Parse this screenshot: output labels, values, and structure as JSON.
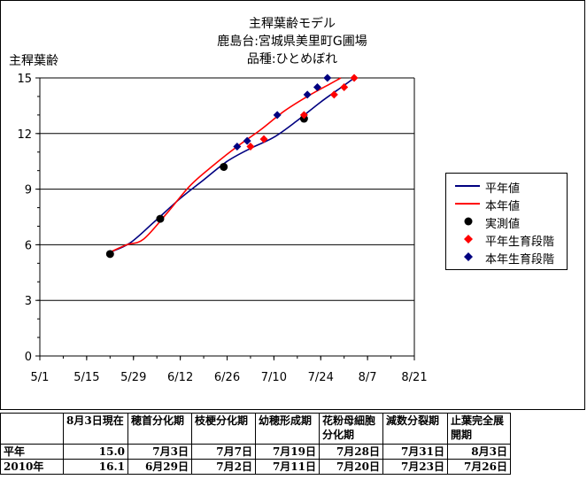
{
  "titles": [
    "主稈葉齢モデル",
    "鹿島台:宮城県美里町G圃場",
    "品種:ひとめぼれ"
  ],
  "chart_data": {
    "type": "line",
    "title": "主稈葉齢モデル",
    "ylabel": "主稈葉齢",
    "xlabel": "",
    "x_ticks": [
      "5/1",
      "5/15",
      "5/29",
      "6/12",
      "6/26",
      "7/10",
      "7/24",
      "8/7",
      "8/21"
    ],
    "y_ticks": [
      "0",
      "3",
      "6",
      "9",
      "12",
      "15"
    ],
    "ylim": [
      0,
      15
    ],
    "xlim": [
      "5/1",
      "8/21"
    ],
    "grid": "horizontal",
    "legend_position": "right",
    "series": [
      {
        "name": "平年値",
        "kind": "line",
        "color": "#000080",
        "points": [
          [
            "5/22",
            5.6
          ],
          [
            "5/28",
            6.1
          ],
          [
            "6/4",
            7.2
          ],
          [
            "6/12",
            8.5
          ],
          [
            "6/19",
            9.5
          ],
          [
            "6/26",
            10.5
          ],
          [
            "7/3",
            11.2
          ],
          [
            "7/10",
            11.8
          ],
          [
            "7/17",
            12.7
          ],
          [
            "7/24",
            13.7
          ],
          [
            "7/31",
            14.6
          ],
          [
            "8/3",
            15.0
          ]
        ]
      },
      {
        "name": "本年値",
        "kind": "line",
        "color": "#ff0000",
        "points": [
          [
            "5/22",
            5.6
          ],
          [
            "5/27",
            6.0
          ],
          [
            "6/1",
            6.3
          ],
          [
            "6/8",
            7.7
          ],
          [
            "6/15",
            9.2
          ],
          [
            "6/22",
            10.3
          ],
          [
            "6/29",
            11.3
          ],
          [
            "7/6",
            12.2
          ],
          [
            "7/13",
            13.2
          ],
          [
            "7/20",
            14.0
          ],
          [
            "7/27",
            14.7
          ],
          [
            "7/30",
            15.0
          ]
        ]
      },
      {
        "name": "実測値",
        "kind": "marker",
        "marker": "circle",
        "color": "#000000",
        "points": [
          [
            "5/22",
            5.5
          ],
          [
            "6/6",
            7.4
          ],
          [
            "6/25",
            10.2
          ],
          [
            "7/19",
            12.8
          ]
        ]
      },
      {
        "name": "平年生育段階",
        "kind": "marker",
        "marker": "diamond",
        "color": "#ff0000",
        "points": [
          [
            "7/3",
            11.3
          ],
          [
            "7/7",
            11.7
          ],
          [
            "7/19",
            13.0
          ],
          [
            "7/28",
            14.1
          ],
          [
            "7/31",
            14.5
          ],
          [
            "8/3",
            15.0
          ]
        ]
      },
      {
        "name": "本年生育段階",
        "kind": "marker",
        "marker": "diamond",
        "color": "#000080",
        "points": [
          [
            "6/29",
            11.3
          ],
          [
            "7/2",
            11.6
          ],
          [
            "7/11",
            13.0
          ],
          [
            "7/20",
            14.1
          ],
          [
            "7/23",
            14.5
          ],
          [
            "7/26",
            15.0
          ]
        ]
      }
    ]
  },
  "table": {
    "headers": [
      "8月3日現在",
      "穂首分化期",
      "枝梗分化期",
      "幼穂形成期",
      "花粉母細胞分化期",
      "減数分裂期",
      "止葉完全展開期"
    ],
    "rows": [
      {
        "label": "平年",
        "values": [
          "15.0",
          "7月3日",
          "7月7日",
          "7月19日",
          "7月28日",
          "7月31日",
          "8月3日"
        ]
      },
      {
        "label": "2010年",
        "values": [
          "16.1",
          "6月29日",
          "7月2日",
          "7月11日",
          "7月20日",
          "7月23日",
          "7月26日"
        ]
      }
    ]
  }
}
